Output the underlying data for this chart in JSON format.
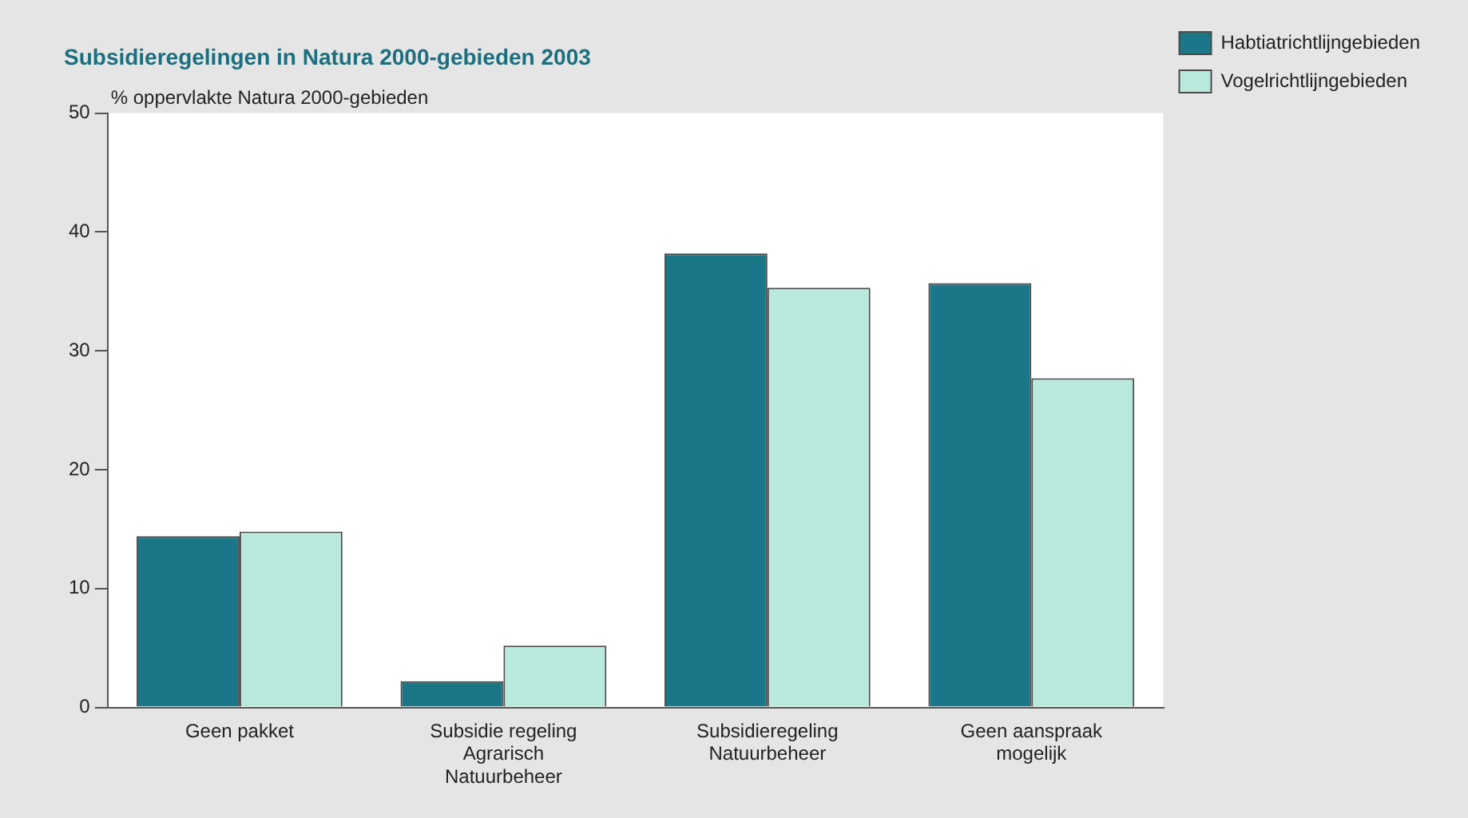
{
  "chart_data": {
    "type": "bar",
    "title": "Subsidieregelingen in Natura 2000-gebieden 2003",
    "ylabel": "% oppervlakte Natura 2000-gebieden",
    "categories": [
      "Geen pakket",
      "Subsidie regeling Agrarisch Natuurbeheer",
      "Subsidieregeling Natuurbeheer",
      "Geen aanspraak mogelijk"
    ],
    "series": [
      {
        "name": "Habtiatrichtlijngebieden",
        "color": "#1b7788",
        "values": [
          14.4,
          2.2,
          38.2,
          35.7
        ]
      },
      {
        "name": "Vogelrichtlijngebieden",
        "color": "#b9e8dd",
        "values": [
          14.8,
          5.2,
          35.3,
          27.7
        ]
      }
    ],
    "ylim": [
      0,
      50
    ],
    "yticks": [
      0,
      10,
      20,
      30,
      40,
      50
    ],
    "grid": false,
    "legend": "top right"
  }
}
